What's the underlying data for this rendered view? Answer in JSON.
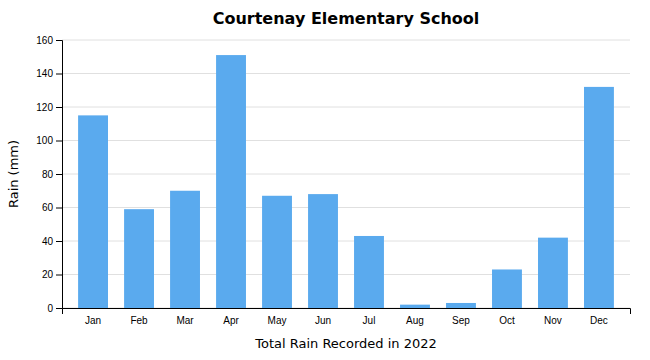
{
  "chart_data": {
    "type": "bar",
    "title": "Courtenay Elementary School",
    "xlabel": "Total Rain Recorded in 2022",
    "ylabel": "Rain (mm)",
    "categories": [
      "Jan",
      "Feb",
      "Mar",
      "Apr",
      "May",
      "Jun",
      "Jul",
      "Aug",
      "Sep",
      "Oct",
      "Nov",
      "Dec"
    ],
    "values": [
      115,
      59,
      70,
      151,
      67,
      68,
      43,
      2,
      3,
      23,
      42,
      132
    ],
    "color": "#5aaaee",
    "ylim": [
      0,
      160
    ],
    "yticks": [
      0,
      20,
      40,
      60,
      80,
      100,
      120,
      140,
      160
    ],
    "grid": true
  }
}
